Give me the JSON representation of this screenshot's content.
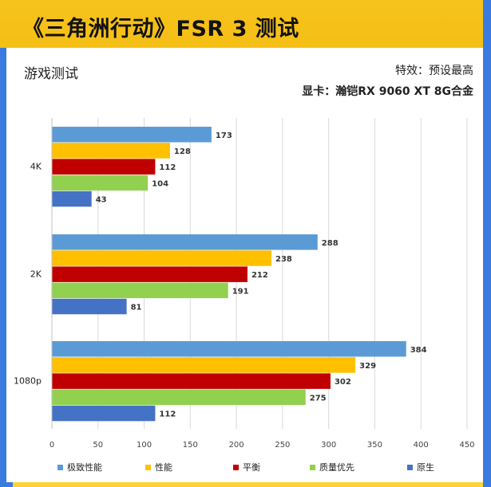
{
  "header": {
    "title": "《三角洲行动》FSR 3 测试",
    "subtitle": "游戏测试",
    "meta_effect": "特效：预设最高",
    "meta_gpu": "显卡：瀚铠RX 9060 XT 8G合金"
  },
  "chart_data": {
    "type": "bar",
    "orientation": "horizontal",
    "categories": [
      "4K",
      "2K",
      "1080p"
    ],
    "series": [
      {
        "name": "极致性能",
        "color": "#5b9bd5",
        "values": [
          173,
          288,
          384
        ]
      },
      {
        "name": "性能",
        "color": "#ffc000",
        "values": [
          128,
          238,
          329
        ]
      },
      {
        "name": "平衡",
        "color": "#c00000",
        "values": [
          112,
          212,
          302
        ]
      },
      {
        "name": "质量优先",
        "color": "#92d050",
        "values": [
          104,
          191,
          275
        ]
      },
      {
        "name": "原生",
        "color": "#4472c4",
        "values": [
          43,
          81,
          112
        ]
      }
    ],
    "xlim": [
      0,
      450
    ],
    "xticks": [
      0,
      50,
      100,
      150,
      200,
      250,
      300,
      350,
      400,
      450
    ],
    "grid": true,
    "legend": "bottom"
  }
}
